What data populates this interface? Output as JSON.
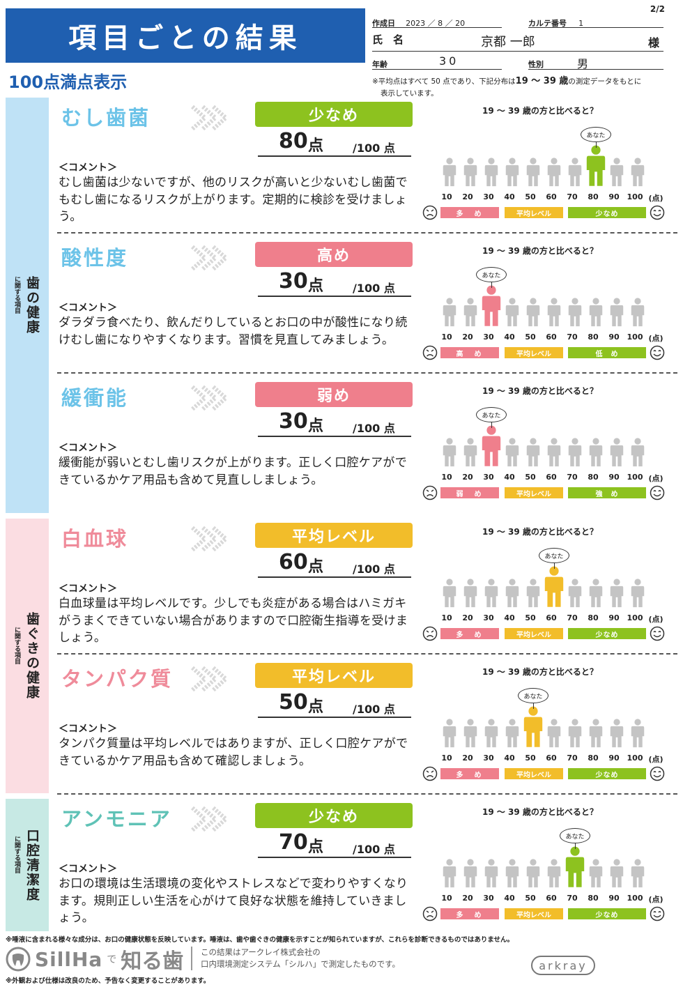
{
  "header": {
    "page_no": "2/2",
    "title": "項目ごとの結果",
    "subtitle": "100点満点表示",
    "created_label": "作成日",
    "created_value": "2023 ／ 8 ／ 20",
    "chart_no_label": "カルテ番号",
    "chart_no_value": "1",
    "name_label": "氏　名",
    "name_value": "京都 一郎",
    "name_suffix": "様",
    "age_label": "年齢",
    "age_value": "30",
    "sex_label": "性別",
    "sex_value": "男",
    "note_pre": "※平均点はすべて 50 点であり、下記分布は",
    "note_range": "19 〜 39 歳",
    "note_post": "の測定データをもとに",
    "note_line2": "表示しています。"
  },
  "categories": [
    {
      "main": "歯の健康",
      "sub": "に関する項目",
      "color": "#bfe2f6"
    },
    {
      "main": "歯ぐきの健康",
      "sub": "に関する項目",
      "color": "#fbdde2"
    },
    {
      "main": "口腔清潔度",
      "sub": "に関する項目",
      "color": "#c7e9e4"
    }
  ],
  "common": {
    "comment_label": "＜コメント＞",
    "compare_title": "19 〜 39 歳の方と比べると？",
    "you_label": "あなた",
    "score_unit": "点",
    "score_max": "/100 点",
    "ticks": [
      "10",
      "20",
      "30",
      "40",
      "50",
      "60",
      "70",
      "80",
      "90",
      "100",
      "(点)"
    ],
    "colors": {
      "green": "#8dc21f",
      "pink": "#ef7f8c",
      "yellow": "#f2bd2a",
      "gray": "#c4c4c4"
    }
  },
  "items": [
    {
      "name": "むし歯菌",
      "name_color": "#6cc3e8",
      "level": "少なめ",
      "level_color": "#8dc21f",
      "score": 80,
      "comment": "むし歯菌は少ないですが、他のリスクが高いと少ないむし歯菌でもむし歯になるリスクが上がります。定期的に検診を受けましょう。",
      "scale": [
        "多　め",
        "平均レベル",
        "少なめ"
      ]
    },
    {
      "name": "酸性度",
      "name_color": "#6cc3e8",
      "level": "高め",
      "level_color": "#ef7f8c",
      "score": 30,
      "comment": "ダラダラ食べたり、飲んだりしているとお口の中が酸性になり続けむし歯になりやすくなります。習慣を見直してみましょう。",
      "scale": [
        "高　め",
        "平均レベル",
        "低　め"
      ]
    },
    {
      "name": "緩衝能",
      "name_color": "#6cc3e8",
      "level": "弱め",
      "level_color": "#ef7f8c",
      "score": 30,
      "comment": "緩衝能が弱いとむし歯リスクが上がります。正しく口腔ケアができているかケア用品も含めて見直ししましょう。",
      "scale": [
        "弱　め",
        "平均レベル",
        "強　め"
      ]
    },
    {
      "name": "白血球",
      "name_color": "#ef8b9a",
      "level": "平均レベル",
      "level_color": "#f2bd2a",
      "score": 60,
      "comment": "白血球量は平均レベルです。少しでも炎症がある場合はハミガキがうまくできていない場合がありますので口腔衛生指導を受けましょう。",
      "scale": [
        "多　め",
        "平均レベル",
        "少なめ"
      ]
    },
    {
      "name": "タンパク質",
      "name_color": "#ef8b9a",
      "level": "平均レベル",
      "level_color": "#f2bd2a",
      "score": 50,
      "comment": "タンパク質量は平均レベルではありますが、正しく口腔ケアができているかケア用品も含めて確認しましょう。",
      "scale": [
        "多　め",
        "平均レベル",
        "少なめ"
      ]
    },
    {
      "name": "アンモニア",
      "name_color": "#5fc2b6",
      "level": "少なめ",
      "level_color": "#8dc21f",
      "score": 70,
      "comment": "お口の環境は生活環境の変化やストレスなどで変わりやすくなります。規則正しい生活を心がけて良好な状態を維持していきましょう。",
      "scale": [
        "多　め",
        "平均レベル",
        "少なめ"
      ]
    }
  ],
  "footer": {
    "note1": "※唾液に含まれる様々な成分は、お口の健康状態を反映しています。唾液は、歯や歯ぐきの健康を示すことが知られていますが、これらを診断できるものではありません。",
    "logo_sill": "SillHa",
    "logo_de": "で",
    "logo_shiru": "知る歯",
    "desc1": "この結果はアークレイ株式会社の",
    "desc2": "口内環境測定システム「シルハ」で測定したものです。",
    "brand": "arkray",
    "note2": "※外観および仕様は改良のため、予告なく変更することがあります。"
  }
}
